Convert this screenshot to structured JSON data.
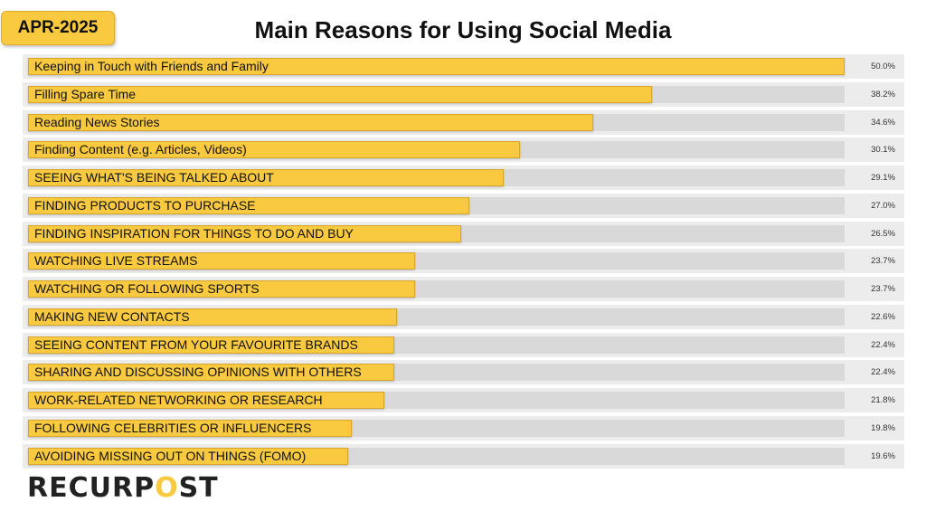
{
  "badge": "APR-2025",
  "logo_text": "RECURPOST",
  "chart_data": {
    "type": "bar",
    "orientation": "horizontal",
    "title": "Main Reasons for Using Social Media",
    "colors": {
      "bar": "#f9c940",
      "track": "#d9d9d9",
      "row": "#ececec"
    },
    "categories": [
      "Keeping in Touch with Friends and Family",
      "Filling Spare Time",
      "Reading News Stories",
      "Finding Content (e.g. Articles, Videos)",
      "SEEING WHAT'S BEING TALKED ABOUT",
      "FINDING PRODUCTS TO PURCHASE",
      "FINDING INSPIRATION FOR THINGS TO DO AND BUY",
      "WATCHING LIVE STREAMS",
      "WATCHING OR FOLLOWING SPORTS",
      "MAKING NEW CONTACTS",
      "SEEING CONTENT FROM YOUR FAVOURITE BRANDS",
      "SHARING AND DISCUSSING OPINIONS WITH OTHERS",
      "WORK-RELATED NETWORKING OR RESEARCH",
      "FOLLOWING CELEBRITIES OR INFLUENCERS",
      "AVOIDING MISSING OUT ON THINGS (FOMO)"
    ],
    "values": [
      50.0,
      38.2,
      34.6,
      30.1,
      29.1,
      27.0,
      26.5,
      23.7,
      23.7,
      22.6,
      22.4,
      22.4,
      21.8,
      19.8,
      19.6
    ],
    "value_labels": [
      "50.0%",
      "38.2%",
      "34.6%",
      "30.1%",
      "29.1%",
      "27.0%",
      "26.5%",
      "23.7%",
      "23.7%",
      "22.6%",
      "22.4%",
      "22.4%",
      "21.8%",
      "19.8%",
      "19.6%"
    ]
  }
}
